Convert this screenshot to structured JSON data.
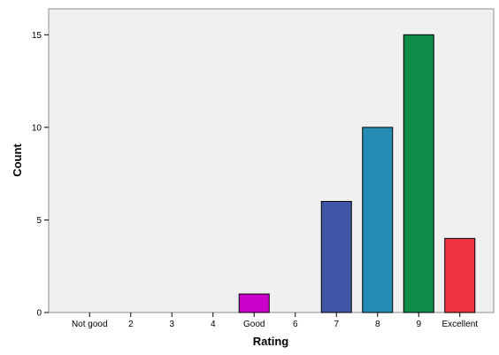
{
  "chart_data": {
    "type": "bar",
    "title": "",
    "xlabel": "Rating",
    "ylabel": "Count",
    "categories": [
      "Not good",
      "2",
      "3",
      "4",
      "Good",
      "6",
      "7",
      "8",
      "9",
      "Excellent"
    ],
    "values": [
      0,
      0,
      0,
      0,
      1,
      0,
      6,
      10,
      15,
      4
    ],
    "bar_colors": [
      "#000000",
      "#000000",
      "#000000",
      "#000000",
      "#cc00cc",
      "#000000",
      "#3f56a6",
      "#238cb3",
      "#0f8c47",
      "#ef3340"
    ],
    "ylim": [
      0,
      16.4
    ],
    "yticks": [
      0,
      5,
      10,
      15
    ],
    "grid": false,
    "legend": "none",
    "background": "#f0f0f0"
  }
}
